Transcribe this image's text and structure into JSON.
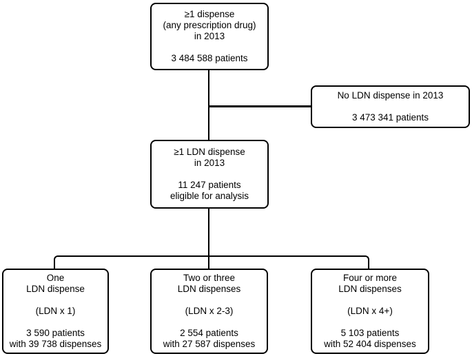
{
  "figure": {
    "type": "flowchart",
    "background_color": "#ffffff",
    "line_color": "#000000",
    "text_color": "#000000"
  },
  "boxes": {
    "any_dispense": {
      "lines": [
        "≥1 dispense",
        "(any prescription drug)",
        "in 2013",
        "",
        "3 484 588 patients"
      ]
    },
    "no_ldn": {
      "lines": [
        "No LDN dispense in 2013",
        "",
        "3 473 341 patients"
      ]
    },
    "ldn_dispense": {
      "lines": [
        "≥1 LDN dispense",
        "in 2013",
        "",
        "11 247 patients",
        "eligible for analysis"
      ]
    },
    "ldn_x1": {
      "lines": [
        "One",
        "LDN dispense",
        "",
        "(LDN x 1)",
        "",
        "3 590 patients",
        "with 39 738 dispenses"
      ]
    },
    "ldn_x2_3": {
      "lines": [
        "Two or three",
        "LDN dispenses",
        "",
        "(LDN x 2-3)",
        "",
        "2 554 patients",
        "with 27 587 dispenses"
      ]
    },
    "ldn_x4_plus": {
      "lines": [
        "Four or more",
        "LDN dispenses",
        "",
        "(LDN x 4+)",
        "",
        "5 103 patients",
        "with 52 404 dispenses"
      ]
    }
  }
}
